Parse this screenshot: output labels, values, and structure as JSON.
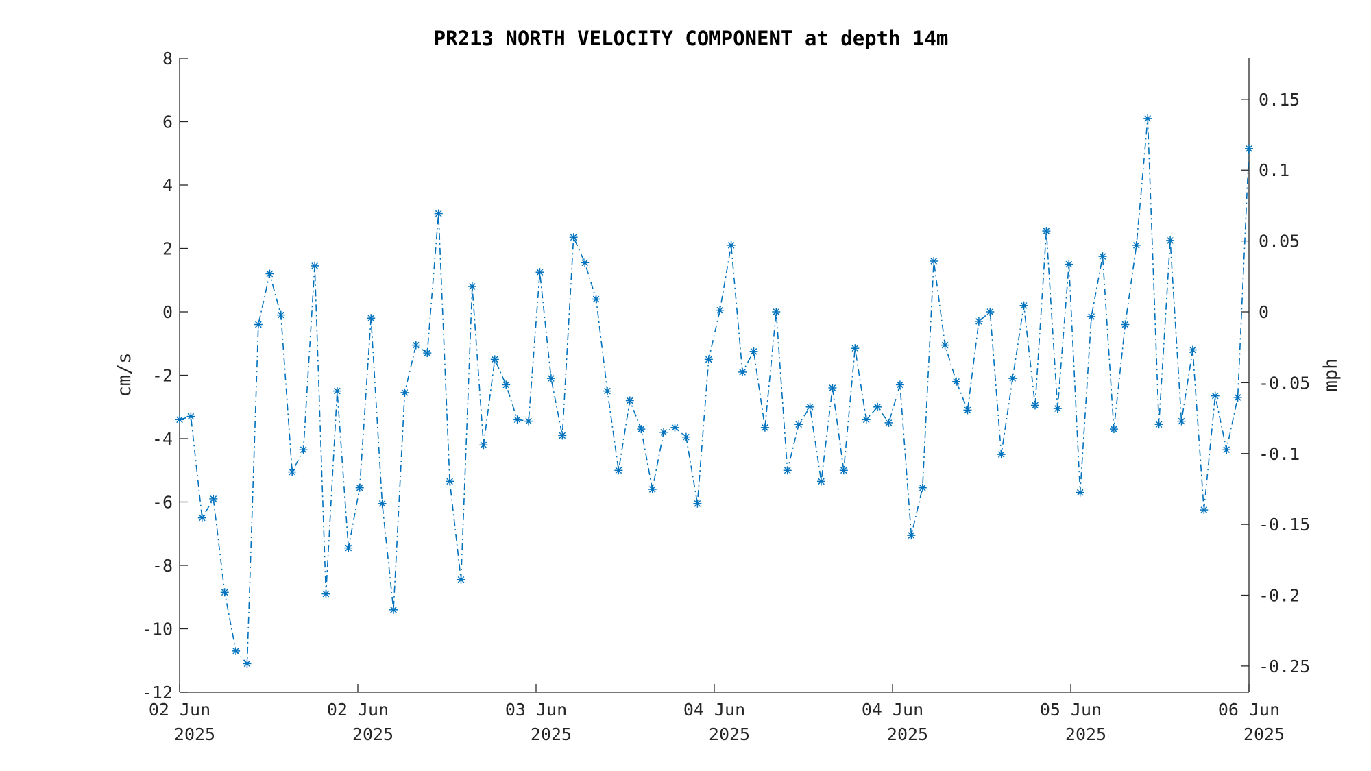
{
  "chart_data": {
    "type": "line",
    "title": "PR213 NORTH VELOCITY COMPONENT at depth 14m",
    "ylabel": "cm/s",
    "ylabel_right": "mph",
    "ylim": [
      -12,
      8
    ],
    "yticks": [
      -12,
      -10,
      -8,
      -6,
      -4,
      -2,
      0,
      2,
      4,
      6,
      8
    ],
    "yticks_right": [
      0.15,
      0.1,
      0.05,
      0,
      -0.05,
      -0.1,
      -0.15,
      -0.2,
      -0.25
    ],
    "yticks_right_labels": [
      "0.15",
      "0.1",
      "0.05",
      "0",
      "-0.05",
      "-0.1",
      "-0.15",
      "-0.2",
      "-0.25"
    ],
    "xticks": [
      {
        "day": "02 Jun",
        "year": "2025"
      },
      {
        "day": "02 Jun",
        "year": "2025"
      },
      {
        "day": "03 Jun",
        "year": "2025"
      },
      {
        "day": "04 Jun",
        "year": "2025"
      },
      {
        "day": "04 Jun",
        "year": "2025"
      },
      {
        "day": "05 Jun",
        "year": "2025"
      },
      {
        "day": "06 Jun",
        "year": "2025"
      }
    ],
    "line_style": "dash-dot",
    "marker": "asterisk",
    "color": "#0072BD",
    "series": [
      {
        "values": [
          -3.4,
          -3.3,
          -6.5,
          -5.9,
          -8.85,
          -10.7,
          -11.1,
          -0.4,
          1.2,
          -0.1,
          -5.05,
          -4.35,
          1.45,
          -8.9,
          -2.5,
          -7.45,
          -5.55,
          -0.2,
          -6.05,
          -9.4,
          -2.55,
          -1.05,
          -1.3,
          3.1,
          -5.35,
          -8.45,
          0.8,
          -4.2,
          -1.5,
          -2.3,
          -3.4,
          -3.45,
          1.25,
          -2.1,
          -3.9,
          2.35,
          1.55,
          0.4,
          -2.5,
          -5.0,
          -2.8,
          -3.7,
          -5.6,
          -3.8,
          -3.65,
          -3.95,
          -6.05,
          -1.5,
          0.05,
          2.1,
          -1.9,
          -1.25,
          -3.65,
          0.0,
          -5.0,
          -3.55,
          -3.0,
          -5.35,
          -2.4,
          -5.0,
          -1.15,
          -3.4,
          -3.0,
          -3.5,
          -2.3,
          -7.05,
          -5.55,
          1.6,
          -1.05,
          -2.2,
          -3.1,
          -0.3,
          0.0,
          -4.5,
          -2.1,
          0.2,
          -2.95,
          2.55,
          -3.05,
          1.5,
          -5.7,
          -0.15,
          1.75,
          -3.7,
          -0.4,
          2.1,
          6.1,
          -3.55,
          2.25,
          -3.45,
          -1.2,
          -6.25,
          -2.65,
          -4.35,
          -2.7,
          5.15
        ]
      }
    ]
  }
}
